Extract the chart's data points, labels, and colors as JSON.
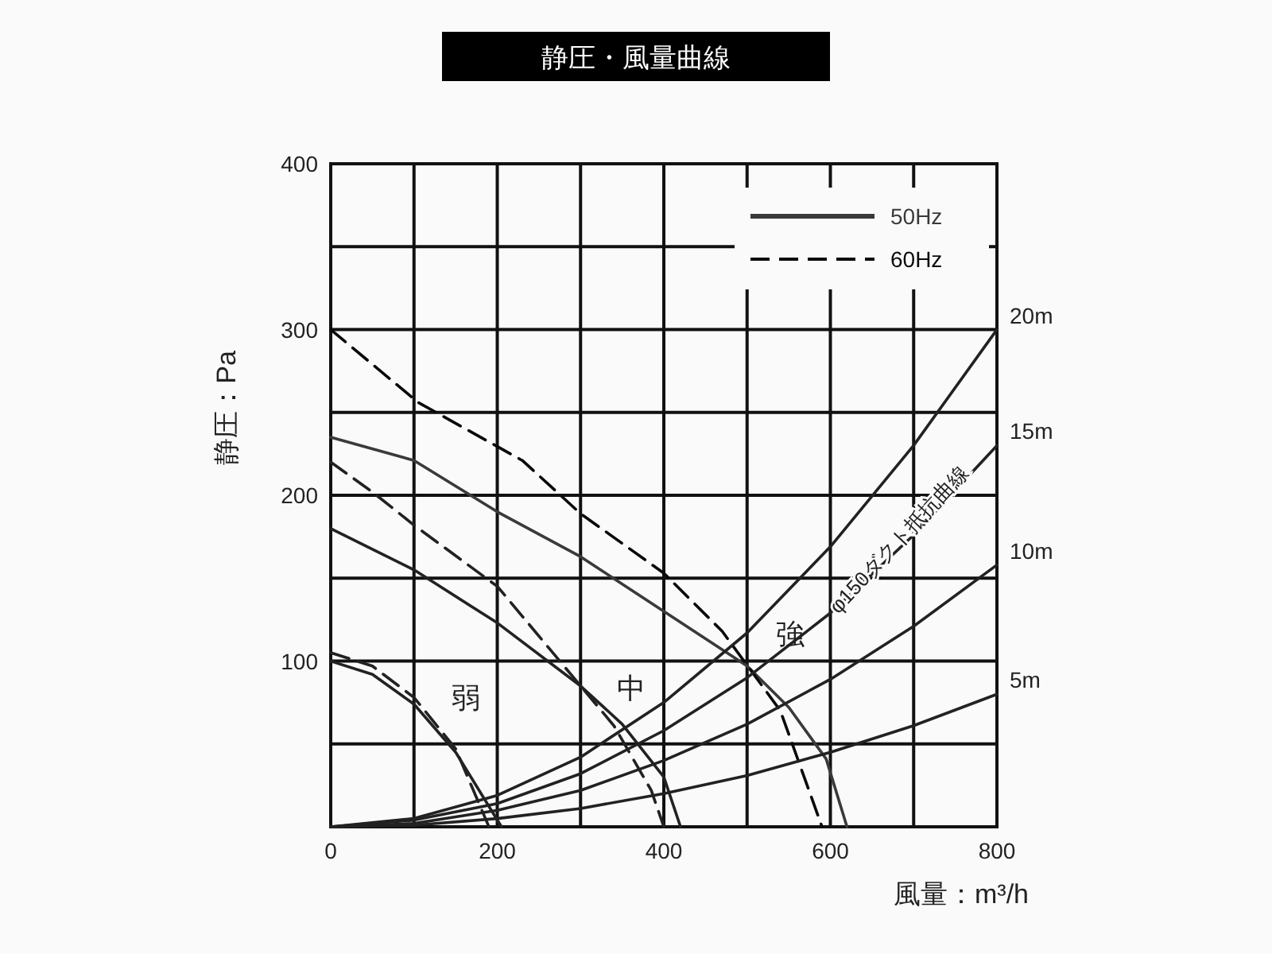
{
  "chart_data": {
    "type": "line",
    "title": "静圧・風量曲線",
    "xlabel": "風量：m³/h",
    "ylabel": "静圧：Pa",
    "xlim": [
      0,
      800
    ],
    "ylim": [
      0,
      400
    ],
    "xticks": [
      0,
      {
        "value": 100,
        "label": null
      },
      200,
      {
        "value": 300,
        "label": null
      },
      400,
      {
        "value": 500,
        "label": null
      },
      600,
      {
        "value": 700,
        "label": null
      },
      800
    ],
    "yticks": [
      {
        "value": 0,
        "label": null
      },
      {
        "value": 50,
        "label": null
      },
      100,
      {
        "value": 150,
        "label": null
      },
      200,
      {
        "value": 250,
        "label": null
      },
      300,
      {
        "value": 350,
        "label": null
      },
      400
    ],
    "grid": true,
    "legend": "top right",
    "marker": "none",
    "series": [
      {
        "name": "50Hz",
        "color": "#3a3a3a",
        "line_style": "solid",
        "x": [
          0,
          100,
          200,
          300,
          400,
          500,
          550,
          595,
          620
        ],
        "values": [
          235,
          221,
          190,
          163,
          130,
          97,
          72,
          41,
          0
        ]
      },
      {
        "color": "#222222",
        "line_style": "solid",
        "x": [
          0,
          100,
          200,
          300,
          350,
          400,
          420
        ],
        "values": [
          180,
          155,
          123,
          85,
          62,
          30,
          0
        ]
      },
      {
        "color": "#222222",
        "line_style": "solid",
        "x": [
          0,
          50,
          100,
          150,
          205
        ],
        "values": [
          100,
          92,
          74,
          45,
          0
        ]
      },
      {
        "name": "60Hz",
        "color": "#0a0a0a",
        "line_style": "dashed",
        "x": [
          0,
          105,
          230,
          300,
          400,
          470,
          540,
          590
        ],
        "values": [
          300,
          256,
          221,
          189,
          153,
          118,
          70,
          0
        ]
      },
      {
        "color": "#222222",
        "line_style": "dashed",
        "x": [
          0,
          50,
          100,
          200,
          270,
          340,
          385,
          400
        ],
        "values": [
          220,
          202,
          182,
          145,
          103,
          61,
          22,
          0
        ]
      },
      {
        "color": "#222222",
        "line_style": "dashed",
        "x": [
          0,
          50,
          100,
          150,
          190
        ],
        "values": [
          105,
          97,
          78,
          47,
          0
        ]
      },
      {
        "name": "20m",
        "color": "#222222",
        "line_style": "solid",
        "x": [
          0,
          100,
          200,
          300,
          400,
          500,
          600,
          700,
          800
        ],
        "values": [
          0,
          5,
          19,
          42,
          75,
          117,
          169,
          230,
          300
        ]
      },
      {
        "name": "15m",
        "color": "#222222",
        "line_style": "solid",
        "x": [
          0,
          100,
          200,
          300,
          400,
          500,
          600,
          700,
          800
        ],
        "values": [
          0,
          4,
          14,
          32,
          58,
          90,
          129,
          176,
          230
        ]
      },
      {
        "name": "10m",
        "color": "#222222",
        "line_style": "solid",
        "x": [
          0,
          100,
          200,
          300,
          400,
          500,
          600,
          700,
          800
        ],
        "values": [
          0,
          2,
          10,
          22,
          40,
          62,
          89,
          121,
          158
        ]
      },
      {
        "name": "5m",
        "color": "#222222",
        "line_style": "solid",
        "x": [
          0,
          100,
          200,
          300,
          400,
          500,
          600,
          700,
          800
        ],
        "values": [
          0,
          1,
          5,
          11,
          20,
          31,
          45,
          61,
          80
        ]
      }
    ],
    "annotations": [
      "弱",
      "中",
      "強",
      "φ150ダクト抵抗曲線"
    ]
  }
}
